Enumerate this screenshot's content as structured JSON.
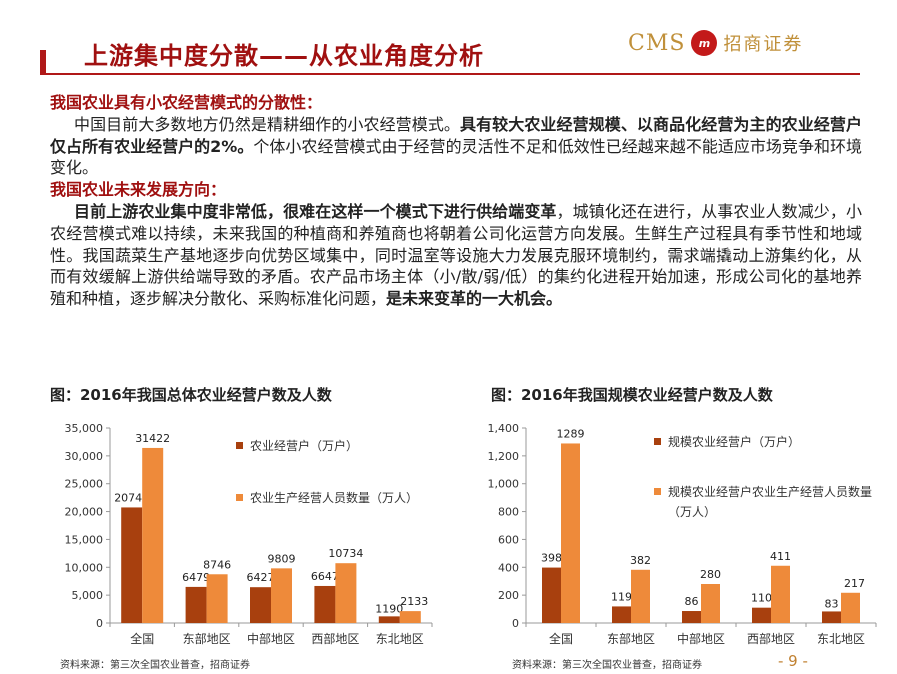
{
  "header": {
    "title": "上游集中度分散——从农业角度分析",
    "logo": {
      "cms": "CMS",
      "circle": "m",
      "cn": "招商证券"
    }
  },
  "section1": {
    "title": "我国农业具有小农经营模式的分散性：",
    "p1": "中国目前大多数地方仍然是精耕细作的小农经营模式。",
    "p1_bold": "具有较大农业经营规模、以商品化经营为主的农业经营户仅占所有农业经营户的2%。",
    "p1_end": "个体小农经营模式由于经营的灵活性不足和低效性已经越来越不能适应市场竞争和环境变化。"
  },
  "section2": {
    "title": "我国农业未来发展方向：",
    "p_bold": "目前上游农业集中度非常低，很难在这样一个模式下进行供给端变革",
    "p_mid": "，城镇化还在进行，从事农业人数减少，小农经营模式难以持续，未来我国的种植商和养殖商也将朝着公司化运营方向发展。生鲜生产过程具有季节性和地域性。我国蔬菜生产基地逐步向优势区域集中，同时温室等设施大力发展克服环境制约，需求端撬动上游集约化，从而有效缓解上游供给端导致的矛盾。农产品市场主体（小/散/弱/低）的集约化进程开始加速，形成公司化的基地养殖和种植，逐步解决分散化、采购标准化问题，",
    "p_end_bold": "是未来变革的一大机会。"
  },
  "chart_data": [
    {
      "type": "bar",
      "title": "图：2016年我国总体农业经营户数及人数",
      "categories": [
        "全国",
        "东部地区",
        "中部地区",
        "西部地区",
        "东北地区"
      ],
      "series": [
        {
          "name": "农业经营户（万户）",
          "values": [
            20743,
            6479,
            6427,
            6647,
            1190
          ],
          "color": "#a8400e"
        },
        {
          "name": "农业生产经营人员数量（万人）",
          "values": [
            31422,
            8746,
            9809,
            10734,
            2133
          ],
          "color": "#ee8a3a"
        }
      ],
      "ylim": [
        0,
        35000
      ],
      "yticks": [
        0,
        5000,
        10000,
        15000,
        20000,
        25000,
        30000,
        35000
      ],
      "ytick_labels": [
        "0",
        "5,000",
        "10,000",
        "15,000",
        "20,000",
        "25,000",
        "30,000",
        "35,000"
      ],
      "legend": "right",
      "grid": false
    },
    {
      "type": "bar",
      "title": "图：2016年我国规模农业经营户数及人数",
      "categories": [
        "全国",
        "东部地区",
        "中部地区",
        "西部地区",
        "东北地区"
      ],
      "series": [
        {
          "name": "规模农业经营户（万户）",
          "values": [
            398,
            119,
            86,
            110,
            83
          ],
          "color": "#a8400e"
        },
        {
          "name": "规模农业经营户农业生产经营人员数量（万人）",
          "values": [
            1289,
            382,
            280,
            411,
            217
          ],
          "color": "#ee8a3a"
        }
      ],
      "ylim": [
        0,
        1400
      ],
      "yticks": [
        0,
        200,
        400,
        600,
        800,
        1000,
        1200,
        1400
      ],
      "ytick_labels": [
        "0",
        "200",
        "400",
        "600",
        "800",
        "1,000",
        "1,200",
        "1,400"
      ],
      "legend": "right",
      "grid": false
    }
  ],
  "source": "资料来源：第三次全国农业普查，招商证券",
  "page_number": "- 9 -"
}
